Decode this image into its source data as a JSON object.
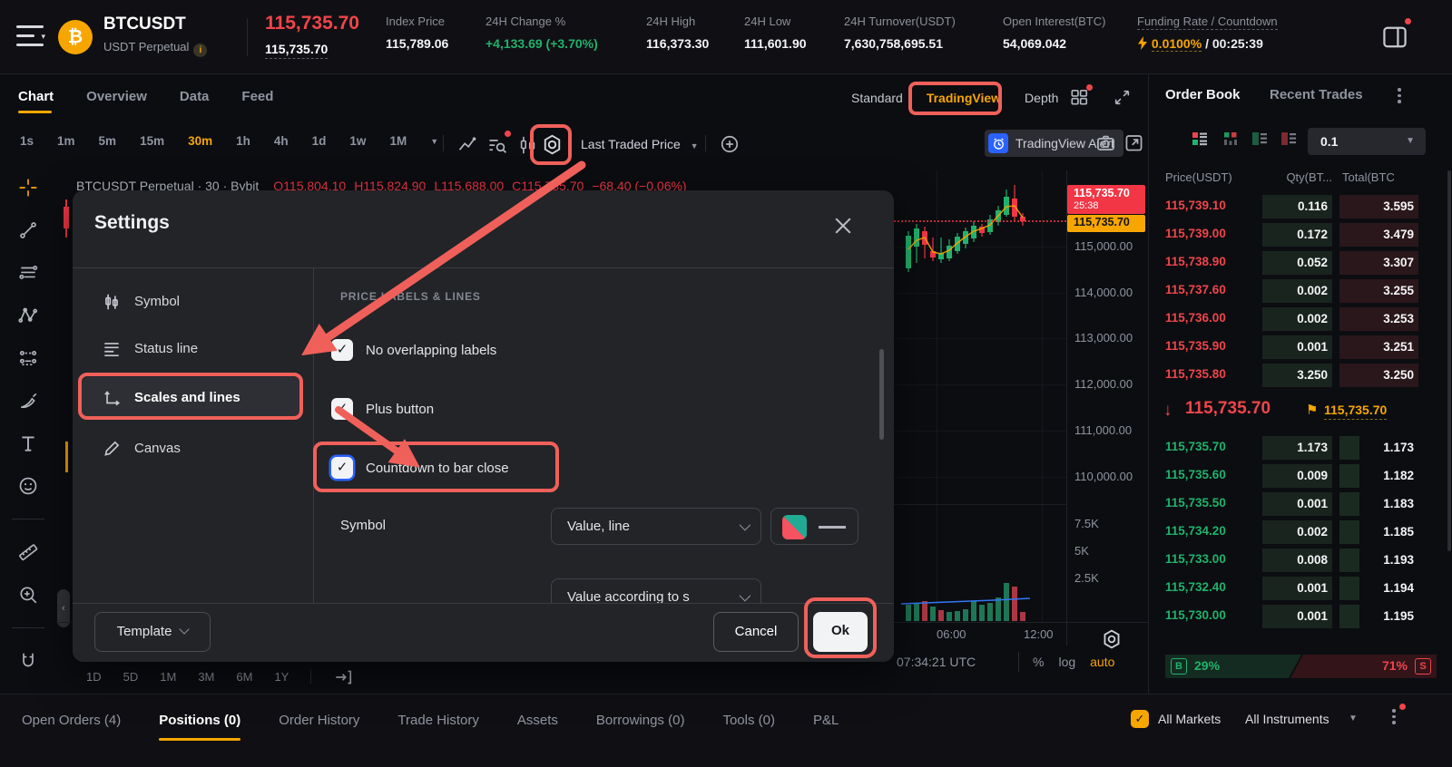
{
  "header": {
    "symbol": "BTCUSDT",
    "market": "USDT Perpetual",
    "last_price": "115,735.70",
    "underlying_price": "115,735.70",
    "stats": [
      {
        "label": "Index Price",
        "value": "115,789.06",
        "tone": "normal"
      },
      {
        "label": "24H Change %",
        "value": "+4,133.69 (+3.70%)",
        "tone": "green"
      },
      {
        "label": "24H High",
        "value": "116,373.30",
        "tone": "normal"
      },
      {
        "label": "24H Low",
        "value": "111,601.90",
        "tone": "normal"
      },
      {
        "label": "24H Turnover(USDT)",
        "value": "7,630,758,695.51",
        "tone": "normal"
      },
      {
        "label": "Open Interest(BTC)",
        "value": "54,069.042",
        "tone": "normal"
      }
    ],
    "funding_label": "Funding Rate / Countdown",
    "funding_rate": "0.0100%",
    "funding_countdown": "/ 00:25:39"
  },
  "chart_panel": {
    "tabs": [
      {
        "label": "Chart",
        "active": true
      },
      {
        "label": "Overview"
      },
      {
        "label": "Data"
      },
      {
        "label": "Feed"
      }
    ],
    "view_modes": [
      {
        "label": "Standard"
      },
      {
        "label": "TradingView",
        "active": true
      },
      {
        "label": "Depth"
      }
    ],
    "timeframes": [
      {
        "label": "1s"
      },
      {
        "label": "1m"
      },
      {
        "label": "5m"
      },
      {
        "label": "15m"
      },
      {
        "label": "30m",
        "active": true
      },
      {
        "label": "1h"
      },
      {
        "label": "4h"
      },
      {
        "label": "1d"
      },
      {
        "label": "1w"
      },
      {
        "label": "1M",
        "caret": true
      }
    ],
    "price_mode": "Last Traded Price",
    "alert_button": "TradingView Alert",
    "tools": [
      {
        "icon": "crosshair-icon",
        "accent": true
      },
      {
        "icon": "trend-line-icon"
      },
      {
        "icon": "parallel-lines-icon"
      },
      {
        "icon": "xabcd-pattern-icon"
      },
      {
        "icon": "forecast-icon"
      },
      {
        "icon": "brush-icon"
      },
      {
        "icon": "text-tool-icon"
      },
      {
        "icon": "emoji-icon"
      },
      {
        "divider": true
      },
      {
        "icon": "ruler-icon"
      },
      {
        "icon": "zoom-in-icon"
      },
      {
        "divider": true
      },
      {
        "icon": "magnet-icon"
      },
      {
        "icon": "edit-icon"
      }
    ],
    "status_line": {
      "symbol_part": "BTCUSDT Perpetual · 30 · Bybit",
      "o": "O115,804.10",
      "h": "H115,824.90",
      "l": "L115,688.00",
      "c": "C115,735.70",
      "chg": "−68.40 (−0.06%)"
    },
    "price_axis_labels": [
      "115,000.00",
      "114,000.00",
      "113,000.00",
      "112,000.00",
      "111,000.00",
      "110,000.00"
    ],
    "volume_axis_labels": [
      "7.5K",
      "5K",
      "2.5K"
    ],
    "countdown_label": {
      "price": "115,735.70",
      "countdown": "25:38"
    },
    "mark_label": "115,735.70",
    "time_ticks": [
      "06:00",
      "12:00"
    ],
    "clock": "07:34:21 UTC",
    "scale_buttons": [
      {
        "label": "%"
      },
      {
        "label": "log"
      },
      {
        "label": "auto",
        "accent": true
      }
    ],
    "range_buttons": [
      "1D",
      "5D",
      "1M",
      "3M",
      "6M",
      "1Y"
    ],
    "candles": [
      [
        16,
        55,
        60,
        96,
        100,
        1
      ],
      [
        25,
        47,
        52,
        72,
        90,
        1
      ],
      [
        34,
        50,
        55,
        70,
        85,
        0
      ],
      [
        43,
        62,
        77,
        84,
        88,
        0
      ],
      [
        52,
        62,
        79,
        86,
        90,
        1
      ],
      [
        61,
        64,
        71,
        85,
        88,
        1
      ],
      [
        70,
        57,
        61,
        77,
        80,
        1
      ],
      [
        79,
        51,
        55,
        69,
        74,
        1
      ],
      [
        88,
        44,
        49,
        63,
        67,
        1
      ],
      [
        97,
        47,
        50,
        57,
        61,
        0
      ],
      [
        106,
        37,
        42,
        56,
        59,
        1
      ],
      [
        115,
        27,
        32,
        45,
        49,
        1
      ],
      [
        124,
        9,
        17,
        37,
        39,
        1
      ],
      [
        133,
        4,
        19,
        39,
        44,
        0
      ],
      [
        142,
        35,
        39,
        44,
        49,
        0
      ]
    ],
    "ma_line": [
      [
        16,
        75
      ],
      [
        25,
        65
      ],
      [
        34,
        62
      ],
      [
        43,
        78
      ],
      [
        52,
        80
      ],
      [
        61,
        76
      ],
      [
        70,
        68
      ],
      [
        79,
        61
      ],
      [
        88,
        55
      ],
      [
        97,
        52
      ],
      [
        106,
        48
      ],
      [
        115,
        38
      ],
      [
        124,
        28
      ],
      [
        133,
        27
      ],
      [
        142,
        40
      ]
    ],
    "volumes": [
      [
        16,
        18,
        1
      ],
      [
        25,
        20,
        1
      ],
      [
        34,
        22,
        0
      ],
      [
        43,
        16,
        1
      ],
      [
        52,
        12,
        0
      ],
      [
        61,
        10,
        1
      ],
      [
        70,
        11,
        1
      ],
      [
        79,
        13,
        1
      ],
      [
        88,
        22,
        1
      ],
      [
        97,
        18,
        1
      ],
      [
        106,
        20,
        1
      ],
      [
        115,
        26,
        1
      ],
      [
        124,
        42,
        1
      ],
      [
        133,
        38,
        0
      ],
      [
        142,
        10,
        0
      ]
    ],
    "vol_ma_line": [
      [
        8,
        31
      ],
      [
        60,
        29
      ],
      [
        110,
        27
      ],
      [
        150,
        25
      ]
    ]
  },
  "order_book": {
    "tabs": [
      {
        "label": "Order Book",
        "active": true
      },
      {
        "label": "Recent Trades"
      }
    ],
    "grouping": "0.1",
    "columns": [
      "Price(USDT)",
      "Qty(BT...",
      "Total(BTC"
    ],
    "asks": [
      [
        "115,739.10",
        "0.116",
        "3.595"
      ],
      [
        "115,739.00",
        "0.172",
        "3.479"
      ],
      [
        "115,738.90",
        "0.052",
        "3.307"
      ],
      [
        "115,737.60",
        "0.002",
        "3.255"
      ],
      [
        "115,736.00",
        "0.002",
        "3.253"
      ],
      [
        "115,735.90",
        "0.001",
        "3.251"
      ],
      [
        "115,735.80",
        "3.250",
        "3.250"
      ]
    ],
    "last": {
      "price": "115,735.70",
      "flag_price": "115,735.70"
    },
    "bids": [
      [
        "115,735.70",
        "1.173",
        "1.173"
      ],
      [
        "115,735.60",
        "0.009",
        "1.182"
      ],
      [
        "115,735.50",
        "0.001",
        "1.183"
      ],
      [
        "115,734.20",
        "0.002",
        "1.185"
      ],
      [
        "115,733.00",
        "0.008",
        "1.193"
      ],
      [
        "115,732.40",
        "0.001",
        "1.194"
      ],
      [
        "115,730.00",
        "0.001",
        "1.195"
      ]
    ],
    "ratio": {
      "buy_label": "B",
      "buy_pct": "29%",
      "sell_pct": "71%",
      "sell_label": "S"
    }
  },
  "bottom_bar": {
    "tabs": [
      {
        "label": "Open Orders (4)"
      },
      {
        "label": "Positions (0)",
        "active": true
      },
      {
        "label": "Order History"
      },
      {
        "label": "Trade History"
      },
      {
        "label": "Assets"
      },
      {
        "label": "Borrowings (0)"
      },
      {
        "label": "Tools (0)"
      },
      {
        "label": "P&L"
      }
    ],
    "all_markets": "All Markets",
    "all_instruments": "All Instruments"
  },
  "settings_modal": {
    "title": "Settings",
    "nav": [
      {
        "label": "Symbol",
        "icon": "symbol-icon"
      },
      {
        "label": "Status line",
        "icon": "status-line-icon"
      },
      {
        "label": "Scales and lines",
        "icon": "scales-icon",
        "active": true
      },
      {
        "label": "Canvas",
        "icon": "canvas-icon"
      }
    ],
    "section_heading": "PRICE LABELS & LINES",
    "checkboxes": [
      {
        "label": "No overlapping labels",
        "checked": true
      },
      {
        "label": "Plus button",
        "checked": true
      },
      {
        "label": "Countdown to bar close",
        "checked": true,
        "focused": true
      }
    ],
    "symbol_row": {
      "label": "Symbol",
      "dropdown": "Value, line"
    },
    "partial_dropdown": "Value according to s",
    "template_button": "Template",
    "cancel_button": "Cancel",
    "ok_button": "Ok"
  },
  "colors": {
    "accent": "#f7a600",
    "buy": "#20b26c",
    "sell": "#ef454a",
    "annotation": "#f0605a",
    "focus_blue": "#2962ff"
  }
}
